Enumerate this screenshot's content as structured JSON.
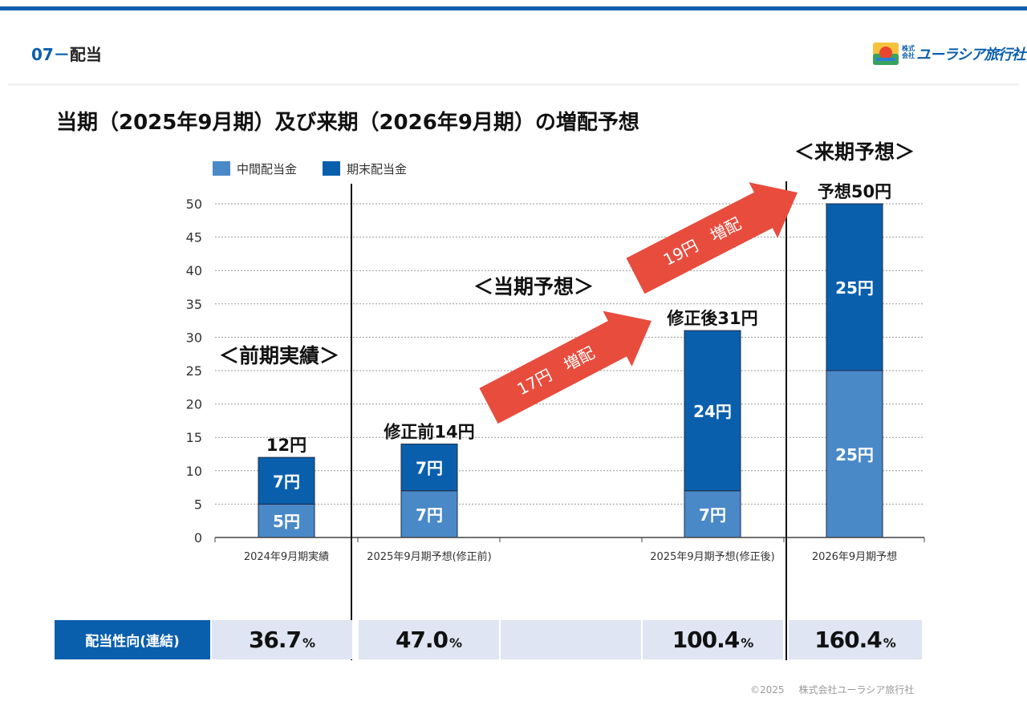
{
  "header": {
    "section_number": "07",
    "section_separator": "－",
    "section_label": "配当",
    "logo_kabu": "株式会社",
    "logo_name": "ユーラシア旅行社"
  },
  "main_title": "当期（2025年9月期）及び来期（2026年9月期）の増配予想",
  "chart_data": {
    "type": "bar",
    "stacked": true,
    "categories": [
      "2024年9月期実績",
      "2025年9月期予想(修正前)",
      "2025年9月期予想(修正後)",
      "2026年9月期予想"
    ],
    "series": [
      {
        "name": "中間配当金",
        "values": [
          5,
          7,
          7,
          25
        ],
        "labels": [
          "5円",
          "7円",
          "7円",
          "25円"
        ],
        "color": "#4a89c8"
      },
      {
        "name": "期末配当金",
        "values": [
          7,
          7,
          24,
          25
        ],
        "labels": [
          "7円",
          "7円",
          "24円",
          "25円"
        ],
        "color": "#0a5fad"
      }
    ],
    "totals": [
      "12円",
      "修正前14円",
      "修正後31円",
      "予想50円"
    ],
    "yticks": [
      "0",
      "5",
      "10",
      "15",
      "20",
      "25",
      "30",
      "35",
      "40",
      "45",
      "50"
    ],
    "ylim": [
      0,
      50
    ],
    "grid": true,
    "legend_position": "top-left",
    "annotations": {
      "period_labels": [
        "＜前期実績＞",
        "＜当期予想＞",
        "＜来期予想＞"
      ],
      "arrow_labels": [
        "17円　増配",
        "19円　増配"
      ],
      "arrow_color": "#e84c3d"
    }
  },
  "payout": {
    "label": "配当性向(連結)",
    "values": [
      "36.7",
      "47.0",
      "",
      "100.4",
      "160.4"
    ],
    "unit": "%"
  },
  "footer": {
    "copyright": "©2025",
    "company": "株式会社ユーラシア旅行社"
  }
}
